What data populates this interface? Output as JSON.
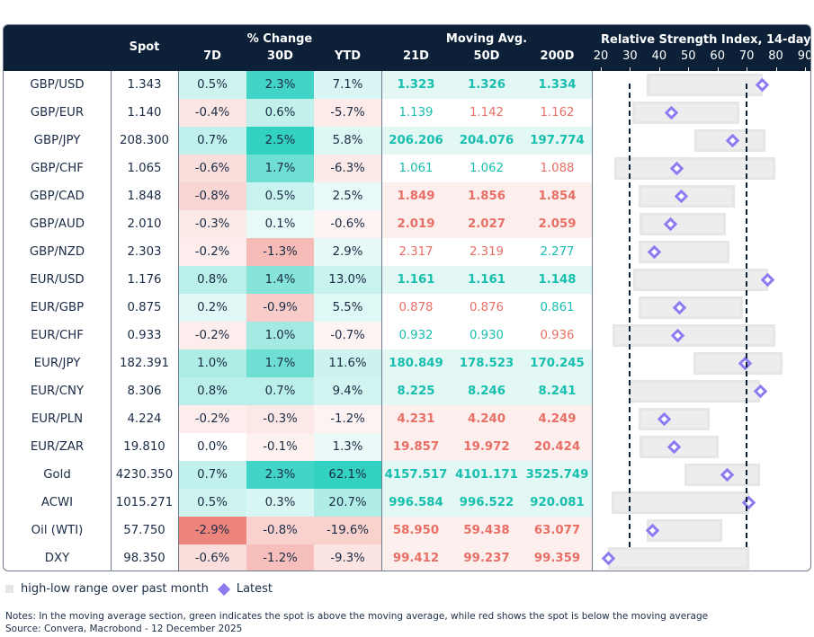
{
  "header": {
    "spot": "Spot",
    "pct_change_group": "% Change",
    "pct_cols": [
      "7D",
      "30D",
      "YTD"
    ],
    "ma_group": "Moving Avg.",
    "ma_cols": [
      "21D",
      "50D",
      "200D"
    ],
    "rsi_title": "Relative Strength Index, 14-day",
    "rsi_ticks": [
      "20",
      "30",
      "40",
      "50",
      "60",
      "70",
      "80",
      "90"
    ]
  },
  "colors": {
    "header_bg": "#0c2038",
    "positive": "#33d1c1",
    "negative": "#ee857c",
    "ma_above": "#17bfae",
    "ma_below": "#e86f66",
    "ma_above_bg": "#e3f7f5",
    "ma_below_bg": "#fcefee",
    "rsi_range": "#ededed",
    "rsi_latest": "#8b7cf0",
    "threshold_line": "#0c2038"
  },
  "rows": [
    {
      "pair": "GBP/USD",
      "spot": "1.343",
      "d7": "0.5%",
      "d30": "2.3%",
      "ytd": "7.1%",
      "ma21": "1.323",
      "ma50": "1.326",
      "ma200": "1.334",
      "ma_state": [
        "above",
        "above",
        "above"
      ],
      "rsi_low": 35.7,
      "rsi_high": 75.4,
      "rsi_latest": 75.4
    },
    {
      "pair": "GBP/EUR",
      "spot": "1.140",
      "d7": "-0.4%",
      "d30": "0.6%",
      "ytd": "-5.7%",
      "ma21": "1.139",
      "ma50": "1.142",
      "ma200": "1.162",
      "ma_state": [
        "above",
        "below",
        "below"
      ],
      "rsi_low": 30.8,
      "rsi_high": 67.6,
      "rsi_latest": 44.3
    },
    {
      "pair": "GBP/JPY",
      "spot": "208.300",
      "d7": "0.7%",
      "d30": "2.5%",
      "ytd": "5.8%",
      "ma21": "206.206",
      "ma50": "204.076",
      "ma200": "197.774",
      "ma_state": [
        "above",
        "above",
        "above"
      ],
      "rsi_low": 52.1,
      "rsi_high": 76.4,
      "rsi_latest": 65.3
    },
    {
      "pair": "GBP/CHF",
      "spot": "1.065",
      "d7": "-0.6%",
      "d30": "1.7%",
      "ytd": "-6.3%",
      "ma21": "1.061",
      "ma50": "1.062",
      "ma200": "1.088",
      "ma_state": [
        "above",
        "above",
        "below"
      ],
      "rsi_low": 24.6,
      "rsi_high": 79.7,
      "rsi_latest": 46.1
    },
    {
      "pair": "GBP/CAD",
      "spot": "1.848",
      "d7": "-0.8%",
      "d30": "0.5%",
      "ytd": "2.5%",
      "ma21": "1.849",
      "ma50": "1.856",
      "ma200": "1.854",
      "ma_state": [
        "below",
        "below",
        "below"
      ],
      "rsi_low": 33.1,
      "rsi_high": 65.9,
      "rsi_latest": 47.7
    },
    {
      "pair": "GBP/AUD",
      "spot": "2.010",
      "d7": "-0.3%",
      "d30": "0.1%",
      "ytd": "-0.6%",
      "ma21": "2.019",
      "ma50": "2.027",
      "ma200": "2.059",
      "ma_state": [
        "below",
        "below",
        "below"
      ],
      "rsi_low": 33.3,
      "rsi_high": 63.0,
      "rsi_latest": 43.8
    },
    {
      "pair": "GBP/NZD",
      "spot": "2.303",
      "d7": "-0.2%",
      "d30": "-1.3%",
      "ytd": "2.9%",
      "ma21": "2.317",
      "ma50": "2.319",
      "ma200": "2.277",
      "ma_state": [
        "below",
        "below",
        "above"
      ],
      "rsi_low": 32.8,
      "rsi_high": 64.0,
      "rsi_latest": 38.4
    },
    {
      "pair": "EUR/USD",
      "spot": "1.176",
      "d7": "0.8%",
      "d30": "1.4%",
      "ytd": "13.0%",
      "ma21": "1.161",
      "ma50": "1.161",
      "ma200": "1.148",
      "ma_state": [
        "above",
        "above",
        "above"
      ],
      "rsi_low": 31.2,
      "rsi_high": 77.3,
      "rsi_latest": 77.3
    },
    {
      "pair": "EUR/GBP",
      "spot": "0.875",
      "d7": "0.2%",
      "d30": "-0.9%",
      "ytd": "5.5%",
      "ma21": "0.878",
      "ma50": "0.876",
      "ma200": "0.861",
      "ma_state": [
        "below",
        "below",
        "above"
      ],
      "rsi_low": 32.8,
      "rsi_high": 68.6,
      "rsi_latest": 47.0
    },
    {
      "pair": "EUR/CHF",
      "spot": "0.933",
      "d7": "-0.2%",
      "d30": "1.0%",
      "ytd": "-0.7%",
      "ma21": "0.932",
      "ma50": "0.930",
      "ma200": "0.936",
      "ma_state": [
        "above",
        "above",
        "below"
      ],
      "rsi_low": 24.1,
      "rsi_high": 79.9,
      "rsi_latest": 46.4
    },
    {
      "pair": "EUR/JPY",
      "spot": "182.391",
      "d7": "1.0%",
      "d30": "1.7%",
      "ytd": "11.6%",
      "ma21": "180.849",
      "ma50": "178.523",
      "ma200": "170.245",
      "ma_state": [
        "above",
        "above",
        "above"
      ],
      "rsi_low": 51.7,
      "rsi_high": 82.2,
      "rsi_latest": 69.5
    },
    {
      "pair": "EUR/CNY",
      "spot": "8.306",
      "d7": "0.8%",
      "d30": "0.7%",
      "ytd": "9.4%",
      "ma21": "8.225",
      "ma50": "8.246",
      "ma200": "8.241",
      "ma_state": [
        "above",
        "above",
        "above"
      ],
      "rsi_low": 29.7,
      "rsi_high": 74.7,
      "rsi_latest": 74.7
    },
    {
      "pair": "EUR/PLN",
      "spot": "4.224",
      "d7": "-0.2%",
      "d30": "-0.3%",
      "ytd": "-1.2%",
      "ma21": "4.231",
      "ma50": "4.240",
      "ma200": "4.249",
      "ma_state": [
        "below",
        "below",
        "below"
      ],
      "rsi_low": 32.8,
      "rsi_high": 57.4,
      "rsi_latest": 41.7
    },
    {
      "pair": "EUR/ZAR",
      "spot": "19.810",
      "d7": "0.0%",
      "d30": "-0.1%",
      "ytd": "1.3%",
      "ma21": "19.857",
      "ma50": "19.972",
      "ma200": "20.424",
      "ma_state": [
        "below",
        "below",
        "below"
      ],
      "rsi_low": 33.3,
      "rsi_high": 60.3,
      "rsi_latest": 45.1
    },
    {
      "pair": "Gold",
      "spot": "4230.350",
      "d7": "0.7%",
      "d30": "2.3%",
      "ytd": "62.1%",
      "ma21": "4157.517",
      "ma50": "4101.171",
      "ma200": "3525.749",
      "ma_state": [
        "above",
        "above",
        "above"
      ],
      "rsi_low": 48.6,
      "rsi_high": 74.6,
      "rsi_latest": 63.4
    },
    {
      "pair": "ACWI",
      "spot": "1015.271",
      "d7": "0.5%",
      "d30": "0.3%",
      "ytd": "20.7%",
      "ma21": "996.584",
      "ma50": "996.522",
      "ma200": "920.081",
      "ma_state": [
        "above",
        "above",
        "above"
      ],
      "rsi_low": 23.8,
      "rsi_high": 70.8,
      "rsi_latest": 70.8
    },
    {
      "pair": "Oil (WTI)",
      "spot": "57.750",
      "d7": "-2.9%",
      "d30": "-0.8%",
      "ytd": "-19.6%",
      "ma21": "58.950",
      "ma50": "59.438",
      "ma200": "63.077",
      "ma_state": [
        "below",
        "below",
        "below"
      ],
      "rsi_low": 35.6,
      "rsi_high": 61.7,
      "rsi_latest": 37.6
    },
    {
      "pair": "DXY",
      "spot": "98.350",
      "d7": "-0.6%",
      "d30": "-1.2%",
      "ytd": "-9.3%",
      "ma21": "99.412",
      "ma50": "99.237",
      "ma200": "99.359",
      "ma_state": [
        "below",
        "below",
        "below"
      ],
      "rsi_low": 22.5,
      "rsi_high": 70.8,
      "rsi_latest": 22.5
    }
  ],
  "rsi": {
    "axis_min": 20,
    "axis_max": 90,
    "oversold": 30,
    "overbought": 70
  },
  "legend": {
    "range_label": "high-low range over past month",
    "latest_label": "Latest"
  },
  "notes": {
    "note": "Notes: In the moving average section, green indicates the spot is above the moving average, while red shows the spot is below the moving average",
    "source": "Source: Convera, Macrobond - 12 December 2025"
  },
  "chart_data": {
    "type": "table",
    "title": "Relative Strength Index, 14-day",
    "columns": [
      "Pair",
      "Spot",
      "7D",
      "30D",
      "YTD",
      "21D",
      "50D",
      "200D",
      "RSI low",
      "RSI high",
      "RSI latest"
    ],
    "xlim": [
      20,
      90
    ],
    "reference_lines": [
      30,
      70
    ],
    "legend": [
      "high-low range over past month",
      "Latest"
    ],
    "legend_position": "bottom-left"
  }
}
